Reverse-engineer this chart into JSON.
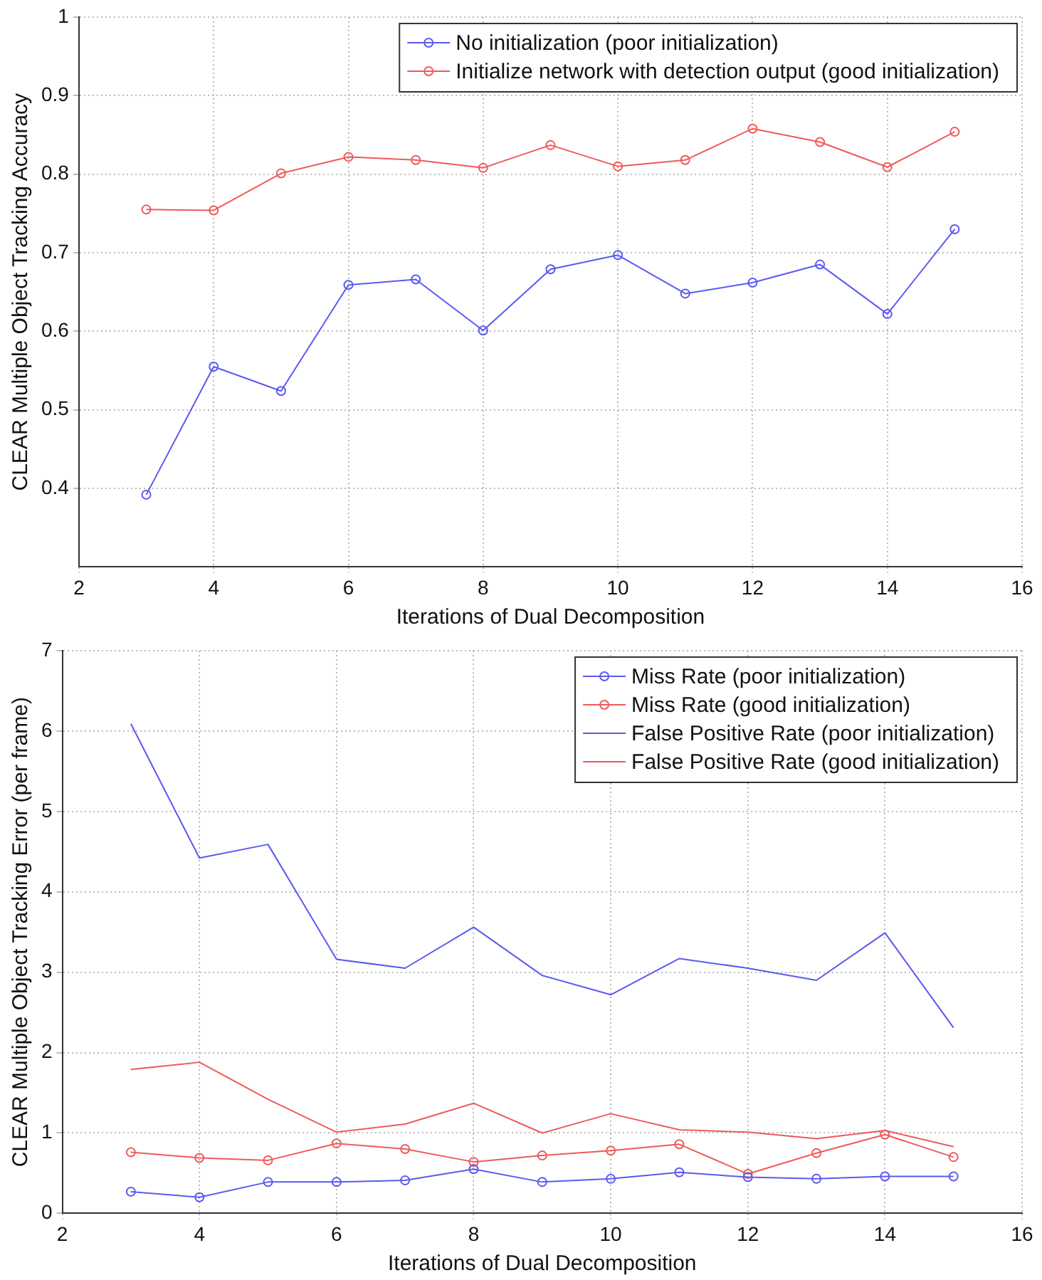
{
  "chart_data": [
    {
      "type": "line",
      "xlabel": "Iterations of Dual Decomposition",
      "ylabel": "CLEAR Multiple Object Tracking Accuracy",
      "x": [
        3,
        4,
        5,
        6,
        7,
        8,
        9,
        10,
        11,
        12,
        13,
        14,
        15
      ],
      "xlim": [
        2,
        16
      ],
      "xticks": [
        2,
        4,
        6,
        8,
        10,
        12,
        14,
        16
      ],
      "ylim": [
        0.3,
        1
      ],
      "yticks": [
        0.4,
        0.5,
        0.6,
        0.7,
        0.8,
        0.9,
        1
      ],
      "grid": true,
      "legend": "top right",
      "marker": "circle",
      "line_style": "solid",
      "series": [
        {
          "name": "No initialization (poor initialization)",
          "color": "#5a5af0",
          "values": [
            0.392,
            0.555,
            0.524,
            0.659,
            0.666,
            0.601,
            0.679,
            0.697,
            0.648,
            0.662,
            0.685,
            0.622,
            0.73
          ]
        },
        {
          "name": "Initialize network with detection output (good initialization)",
          "color": "#f05a5a",
          "values": [
            0.755,
            0.754,
            0.801,
            0.822,
            0.818,
            0.808,
            0.837,
            0.81,
            0.818,
            0.858,
            0.841,
            0.809,
            0.854
          ]
        }
      ]
    },
    {
      "type": "line",
      "xlabel": "Iterations of Dual Decomposition",
      "ylabel": "CLEAR Multiple Object Tracking Error (per frame)",
      "x": [
        3,
        4,
        5,
        6,
        7,
        8,
        9,
        10,
        11,
        12,
        13,
        14,
        15
      ],
      "xlim": [
        2,
        16
      ],
      "xticks": [
        2,
        4,
        6,
        8,
        10,
        12,
        14,
        16
      ],
      "ylim": [
        0,
        7
      ],
      "yticks": [
        0,
        1,
        2,
        3,
        4,
        5,
        6,
        7
      ],
      "grid": true,
      "legend": "top right",
      "line_style": "solid",
      "series": [
        {
          "name": "Miss Rate (poor initialization)",
          "color": "#5a5af0",
          "marker": "circle",
          "values": [
            0.27,
            0.2,
            0.39,
            0.39,
            0.41,
            0.55,
            0.39,
            0.43,
            0.51,
            0.45,
            0.43,
            0.46,
            0.46
          ]
        },
        {
          "name": "Miss Rate (good initialization)",
          "color": "#f05a5a",
          "marker": "circle",
          "values": [
            0.76,
            0.69,
            0.66,
            0.87,
            0.8,
            0.64,
            0.72,
            0.78,
            0.86,
            0.49,
            0.75,
            0.98,
            0.7
          ]
        },
        {
          "name": "False Positive Rate (poor initialization)",
          "color": "#5a5af0",
          "marker": "none",
          "values": [
            6.09,
            4.42,
            4.59,
            3.16,
            3.05,
            3.56,
            2.96,
            2.72,
            3.17,
            3.05,
            2.9,
            3.49,
            2.31
          ]
        },
        {
          "name": "False Positive Rate (good initialization)",
          "color": "#f05a5a",
          "marker": "none",
          "values": [
            1.79,
            1.88,
            1.42,
            1.01,
            1.11,
            1.37,
            1.0,
            1.24,
            1.04,
            1.01,
            0.93,
            1.03,
            0.83
          ]
        }
      ]
    }
  ]
}
